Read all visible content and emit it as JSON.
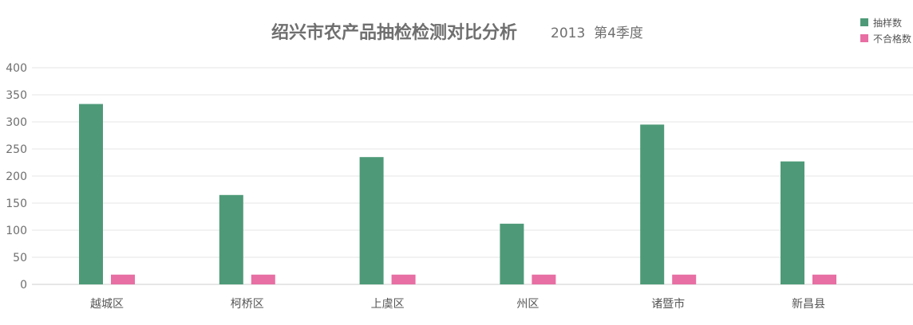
{
  "chart_data": {
    "type": "bar",
    "title": "绍兴市农产品抽检检测对比分析",
    "subtitle": "2013  第4季度",
    "categories": [
      "越城区",
      "柯桥区",
      "上虞区",
      "州区",
      "诸暨市",
      "新昌县"
    ],
    "series": [
      {
        "name": "抽样数",
        "color": "#4e9a78",
        "values": [
          333,
          165,
          235,
          112,
          295,
          227
        ]
      },
      {
        "name": "不合格数",
        "color": "#e76fa3",
        "values": [
          18,
          18,
          18,
          18,
          18,
          18
        ]
      }
    ],
    "ylim": [
      0,
      400
    ],
    "yticks": [
      0,
      50,
      100,
      150,
      200,
      250,
      300,
      350,
      400
    ],
    "grid": true,
    "legend_position": "top-right",
    "xlabel": "",
    "ylabel": ""
  }
}
